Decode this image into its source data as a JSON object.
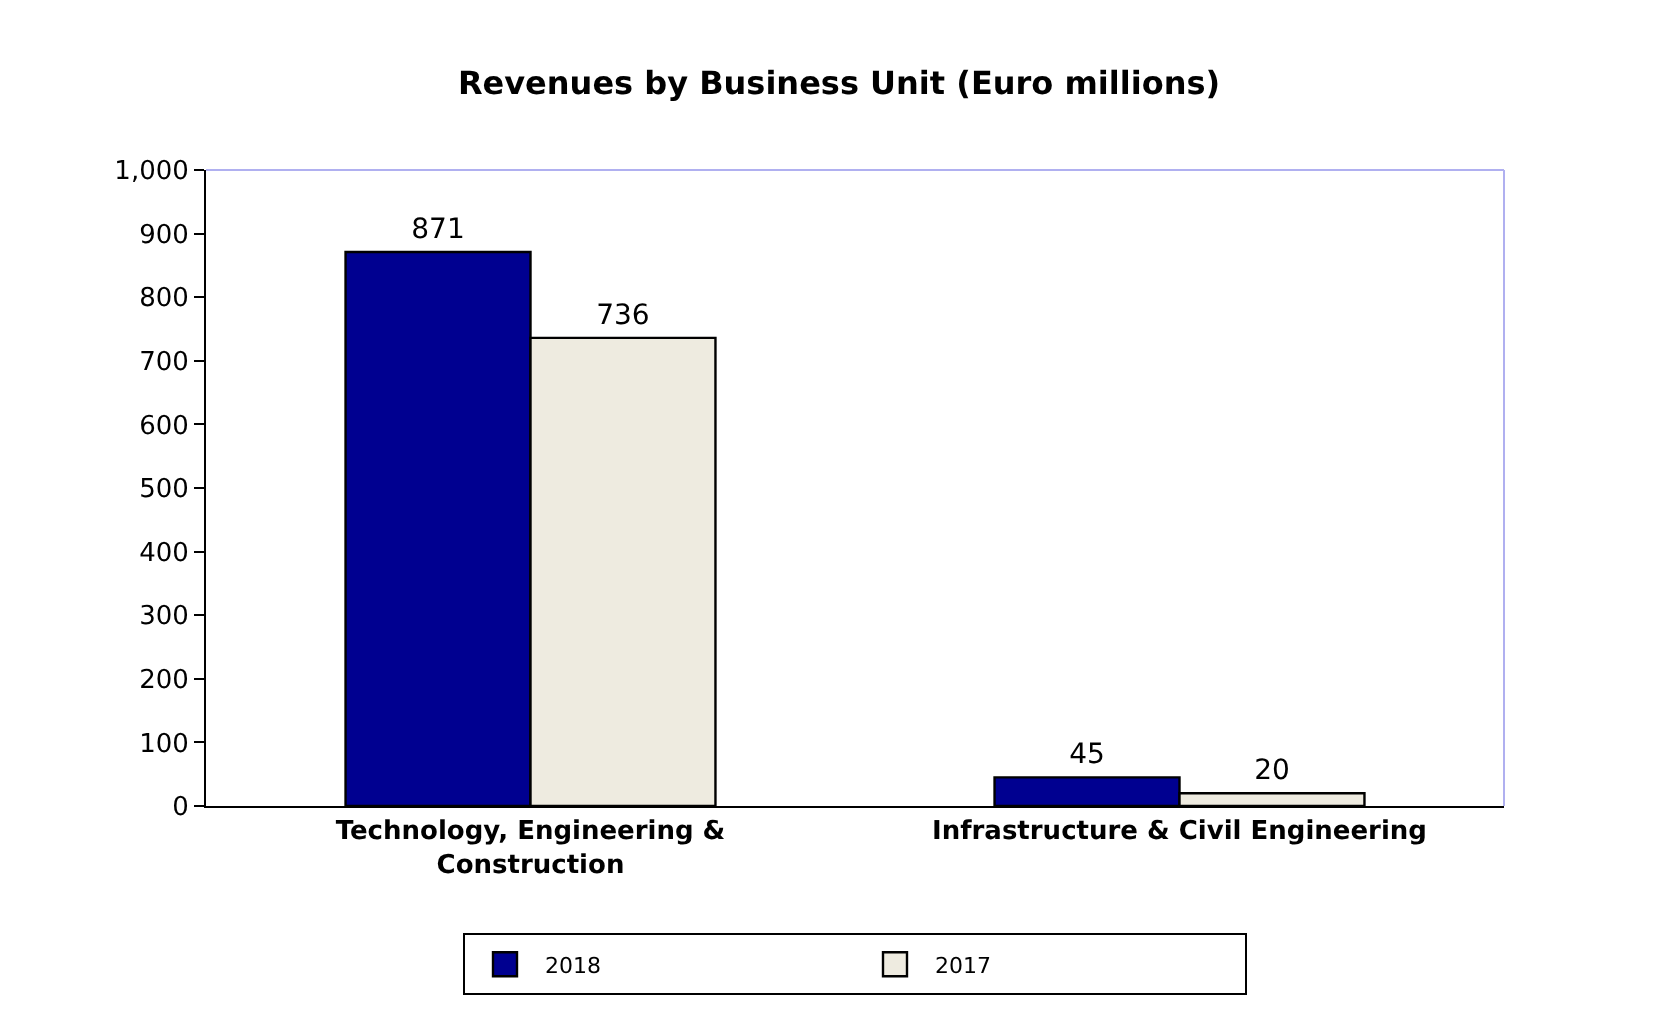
{
  "chart_data": {
    "type": "bar",
    "title": "Revenues by Business Unit (Euro millions)",
    "categories": [
      "Technology, Engineering & Construction",
      "Infrastructure & Civil Engineering"
    ],
    "series": [
      {
        "name": "2018",
        "color": "#000090",
        "values": [
          871,
          45
        ]
      },
      {
        "name": "2017",
        "color": "#eeebe0",
        "values": [
          736,
          20
        ]
      }
    ],
    "ylim": [
      0,
      1000
    ],
    "yticks": [
      0,
      100,
      200,
      300,
      400,
      500,
      600,
      700,
      800,
      900,
      {
        "value": 1000,
        "label": "1,000"
      }
    ],
    "grid": false,
    "legend": "bottom",
    "data_labels": true
  }
}
